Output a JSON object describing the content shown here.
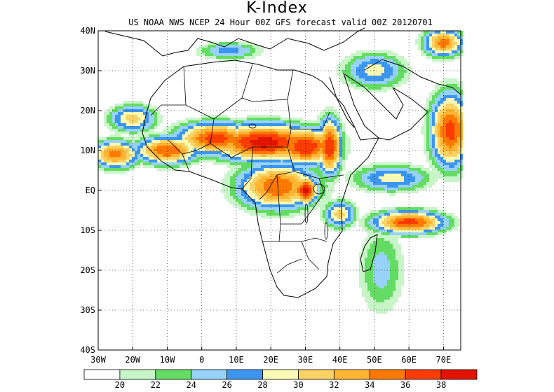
{
  "title": "K-Index",
  "subtitle": "US NOAA NWS NCEP 24 Hour 00Z GFS forecast valid 00Z 20120701",
  "map": {
    "lat_range": [
      -40,
      40
    ],
    "lon_range": [
      -30,
      75
    ],
    "grid": "dotted",
    "lat_ticks": [
      "40N",
      "30N",
      "20N",
      "10N",
      "EQ",
      "10S",
      "20S",
      "30S",
      "40S"
    ],
    "lat_values": [
      40,
      30,
      20,
      10,
      0,
      -10,
      -20,
      -30,
      -40
    ],
    "lon_ticks": [
      "30W",
      "20W",
      "10W",
      "0",
      "10E",
      "20E",
      "30E",
      "40E",
      "50E",
      "60E",
      "70E"
    ],
    "lon_values": [
      -30,
      -20,
      -10,
      0,
      10,
      20,
      30,
      40,
      50,
      60,
      70
    ]
  },
  "colorbar": {
    "colors": [
      "#ffffff",
      "#c8f5c8",
      "#64dc64",
      "#96d2fa",
      "#3c96f0",
      "#fafab4",
      "#fad264",
      "#ffb432",
      "#ff7800",
      "#fa3c00",
      "#e11400"
    ],
    "labels": [
      "20",
      "22",
      "24",
      "26",
      "28",
      "30",
      "32",
      "34",
      "36",
      "38"
    ]
  },
  "k_index_field": [
    {
      "lon": 18,
      "lat": 12,
      "sx": 14,
      "sy": 4,
      "peak": 39
    },
    {
      "lon": 30,
      "lat": 11,
      "sx": 8,
      "sy": 4,
      "peak": 38
    },
    {
      "lon": 4,
      "lat": 13,
      "sx": 10,
      "sy": 3.5,
      "peak": 37
    },
    {
      "lon": -10,
      "lat": 10,
      "sx": 8,
      "sy": 3,
      "peak": 36
    },
    {
      "lon": -25,
      "lat": 9,
      "sx": 6,
      "sy": 3,
      "peak": 35
    },
    {
      "lon": 22,
      "lat": 1,
      "sx": 10,
      "sy": 5,
      "peak": 36
    },
    {
      "lon": 30,
      "lat": 0,
      "sx": 3,
      "sy": 3,
      "peak": 39
    },
    {
      "lon": 37,
      "lat": 11,
      "sx": 3,
      "sy": 6,
      "peak": 38
    },
    {
      "lon": 60,
      "lat": -8,
      "sx": 9,
      "sy": 2.5,
      "peak": 37
    },
    {
      "lon": 72,
      "lat": 15,
      "sx": 5,
      "sy": 8,
      "peak": 37
    },
    {
      "lon": 70,
      "lat": 37,
      "sx": 5,
      "sy": 3,
      "peak": 35
    },
    {
      "lon": 55,
      "lat": 3,
      "sx": 10,
      "sy": 3,
      "peak": 29
    },
    {
      "lon": 50,
      "lat": 30,
      "sx": 8,
      "sy": 4,
      "peak": 29
    },
    {
      "lon": 8,
      "lat": 35,
      "sx": 8,
      "sy": 2,
      "peak": 27
    },
    {
      "lon": -20,
      "lat": 18,
      "sx": 6,
      "sy": 3,
      "peak": 31
    },
    {
      "lon": 40,
      "lat": -6,
      "sx": 4,
      "sy": 3,
      "peak": 31
    },
    {
      "lon": 52,
      "lat": -20,
      "sx": 6,
      "sy": 10,
      "peak": 25
    }
  ]
}
